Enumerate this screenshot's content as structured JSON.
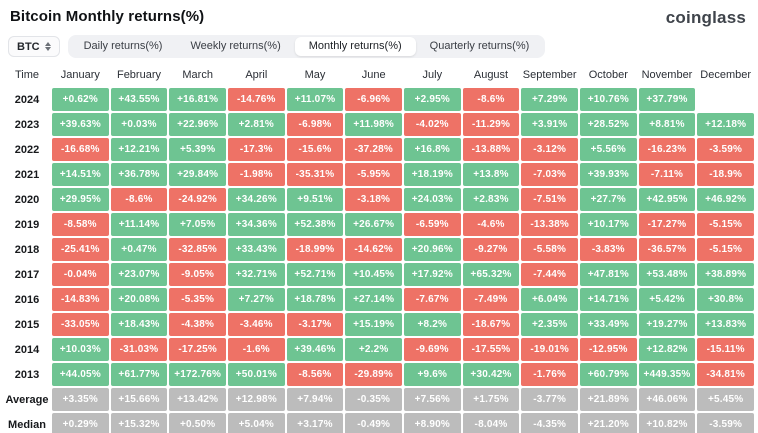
{
  "header": {
    "title": "Bitcoin Monthly returns(%)",
    "logo": "coinglass"
  },
  "controls": {
    "symbol_select": {
      "value": "BTC"
    },
    "tabs": [
      {
        "label": "Daily returns(%)",
        "active": false
      },
      {
        "label": "Weekly returns(%)",
        "active": false
      },
      {
        "label": "Monthly returns(%)",
        "active": true
      },
      {
        "label": "Quarterly returns(%)",
        "active": false
      }
    ]
  },
  "colors": {
    "positive": "#6ec492",
    "negative": "#ee7266",
    "neutral": "#bcbcbc"
  },
  "chart_data": {
    "type": "heatmap",
    "title": "Bitcoin Monthly returns(%)",
    "columns": [
      "Time",
      "January",
      "February",
      "March",
      "April",
      "May",
      "June",
      "July",
      "August",
      "September",
      "October",
      "November",
      "December"
    ],
    "rows": [
      {
        "label": "2024",
        "summary": false,
        "values": [
          "+0.62%",
          "+43.55%",
          "+16.81%",
          "-14.76%",
          "+11.07%",
          "-6.96%",
          "+2.95%",
          "-8.6%",
          "+7.29%",
          "+10.76%",
          "+37.79%",
          null
        ]
      },
      {
        "label": "2023",
        "summary": false,
        "values": [
          "+39.63%",
          "+0.03%",
          "+22.96%",
          "+2.81%",
          "-6.98%",
          "+11.98%",
          "-4.02%",
          "-11.29%",
          "+3.91%",
          "+28.52%",
          "+8.81%",
          "+12.18%"
        ]
      },
      {
        "label": "2022",
        "summary": false,
        "values": [
          "-16.68%",
          "+12.21%",
          "+5.39%",
          "-17.3%",
          "-15.6%",
          "-37.28%",
          "+16.8%",
          "-13.88%",
          "-3.12%",
          "+5.56%",
          "-16.23%",
          "-3.59%"
        ]
      },
      {
        "label": "2021",
        "summary": false,
        "values": [
          "+14.51%",
          "+36.78%",
          "+29.84%",
          "-1.98%",
          "-35.31%",
          "-5.95%",
          "+18.19%",
          "+13.8%",
          "-7.03%",
          "+39.93%",
          "-7.11%",
          "-18.9%"
        ]
      },
      {
        "label": "2020",
        "summary": false,
        "values": [
          "+29.95%",
          "-8.6%",
          "-24.92%",
          "+34.26%",
          "+9.51%",
          "-3.18%",
          "+24.03%",
          "+2.83%",
          "-7.51%",
          "+27.7%",
          "+42.95%",
          "+46.92%"
        ]
      },
      {
        "label": "2019",
        "summary": false,
        "values": [
          "-8.58%",
          "+11.14%",
          "+7.05%",
          "+34.36%",
          "+52.38%",
          "+26.67%",
          "-6.59%",
          "-4.6%",
          "-13.38%",
          "+10.17%",
          "-17.27%",
          "-5.15%"
        ]
      },
      {
        "label": "2018",
        "summary": false,
        "values": [
          "-25.41%",
          "+0.47%",
          "-32.85%",
          "+33.43%",
          "-18.99%",
          "-14.62%",
          "+20.96%",
          "-9.27%",
          "-5.58%",
          "-3.83%",
          "-36.57%",
          "-5.15%"
        ]
      },
      {
        "label": "2017",
        "summary": false,
        "values": [
          "-0.04%",
          "+23.07%",
          "-9.05%",
          "+32.71%",
          "+52.71%",
          "+10.45%",
          "+17.92%",
          "+65.32%",
          "-7.44%",
          "+47.81%",
          "+53.48%",
          "+38.89%"
        ]
      },
      {
        "label": "2016",
        "summary": false,
        "values": [
          "-14.83%",
          "+20.08%",
          "-5.35%",
          "+7.27%",
          "+18.78%",
          "+27.14%",
          "-7.67%",
          "-7.49%",
          "+6.04%",
          "+14.71%",
          "+5.42%",
          "+30.8%"
        ]
      },
      {
        "label": "2015",
        "summary": false,
        "values": [
          "-33.05%",
          "+18.43%",
          "-4.38%",
          "-3.46%",
          "-3.17%",
          "+15.19%",
          "+8.2%",
          "-18.67%",
          "+2.35%",
          "+33.49%",
          "+19.27%",
          "+13.83%"
        ]
      },
      {
        "label": "2014",
        "summary": false,
        "values": [
          "+10.03%",
          "-31.03%",
          "-17.25%",
          "-1.6%",
          "+39.46%",
          "+2.2%",
          "-9.69%",
          "-17.55%",
          "-19.01%",
          "-12.95%",
          "+12.82%",
          "-15.11%"
        ]
      },
      {
        "label": "2013",
        "summary": false,
        "values": [
          "+44.05%",
          "+61.77%",
          "+172.76%",
          "+50.01%",
          "-8.56%",
          "-29.89%",
          "+9.6%",
          "+30.42%",
          "-1.76%",
          "+60.79%",
          "+449.35%",
          "-34.81%"
        ]
      },
      {
        "label": "Average",
        "summary": true,
        "values": [
          "+3.35%",
          "+15.66%",
          "+13.42%",
          "+12.98%",
          "+7.94%",
          "-0.35%",
          "+7.56%",
          "+1.75%",
          "-3.77%",
          "+21.89%",
          "+46.06%",
          "+5.45%"
        ]
      },
      {
        "label": "Median",
        "summary": true,
        "values": [
          "+0.29%",
          "+15.32%",
          "+0.50%",
          "+5.04%",
          "+3.17%",
          "-0.49%",
          "+8.90%",
          "-8.04%",
          "-4.35%",
          "+21.20%",
          "+10.82%",
          "-3.59%"
        ]
      }
    ]
  }
}
